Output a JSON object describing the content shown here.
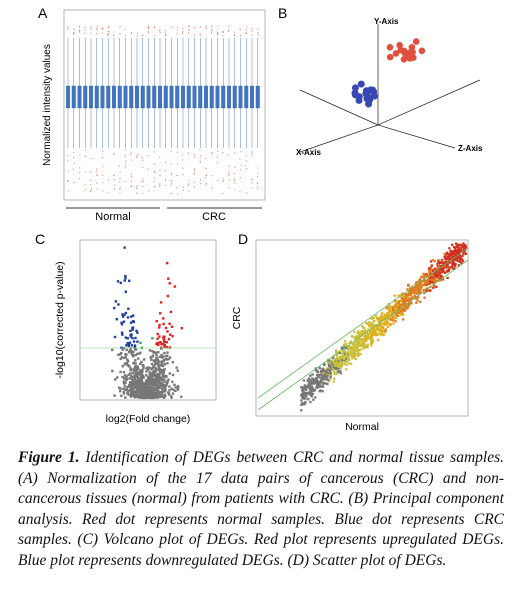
{
  "panels": [
    {
      "label": "A",
      "y_title": "Normalized intensity values",
      "groups": [
        "Normal",
        "CRC"
      ]
    },
    {
      "label": "B",
      "axes": [
        "Y-Axis",
        "X-Axis",
        "Z-Axis"
      ]
    },
    {
      "label": "C",
      "y_title": "-log10(corrected p-value)",
      "x_title": "log2(Fold change)"
    },
    {
      "label": "D",
      "y_title": "CRC",
      "x_title": "Normal"
    }
  ],
  "caption": {
    "lead": "Figure 1.",
    "text": "Identification of DEGs between CRC and normal tissue samples. (A) Normalization of the 17 data pairs of cancerous (CRC) and non-cancerous tissues (normal) from patients with CRC. (B) Principal component analysis. Red dot represents normal samples. Blue dot represents CRC samples. (C) Volcano plot of DEGs. Red plot represents upregulated DEGs. Blue plot represents downregulated DEGs. (D) Scatter plot of DEGs."
  }
}
